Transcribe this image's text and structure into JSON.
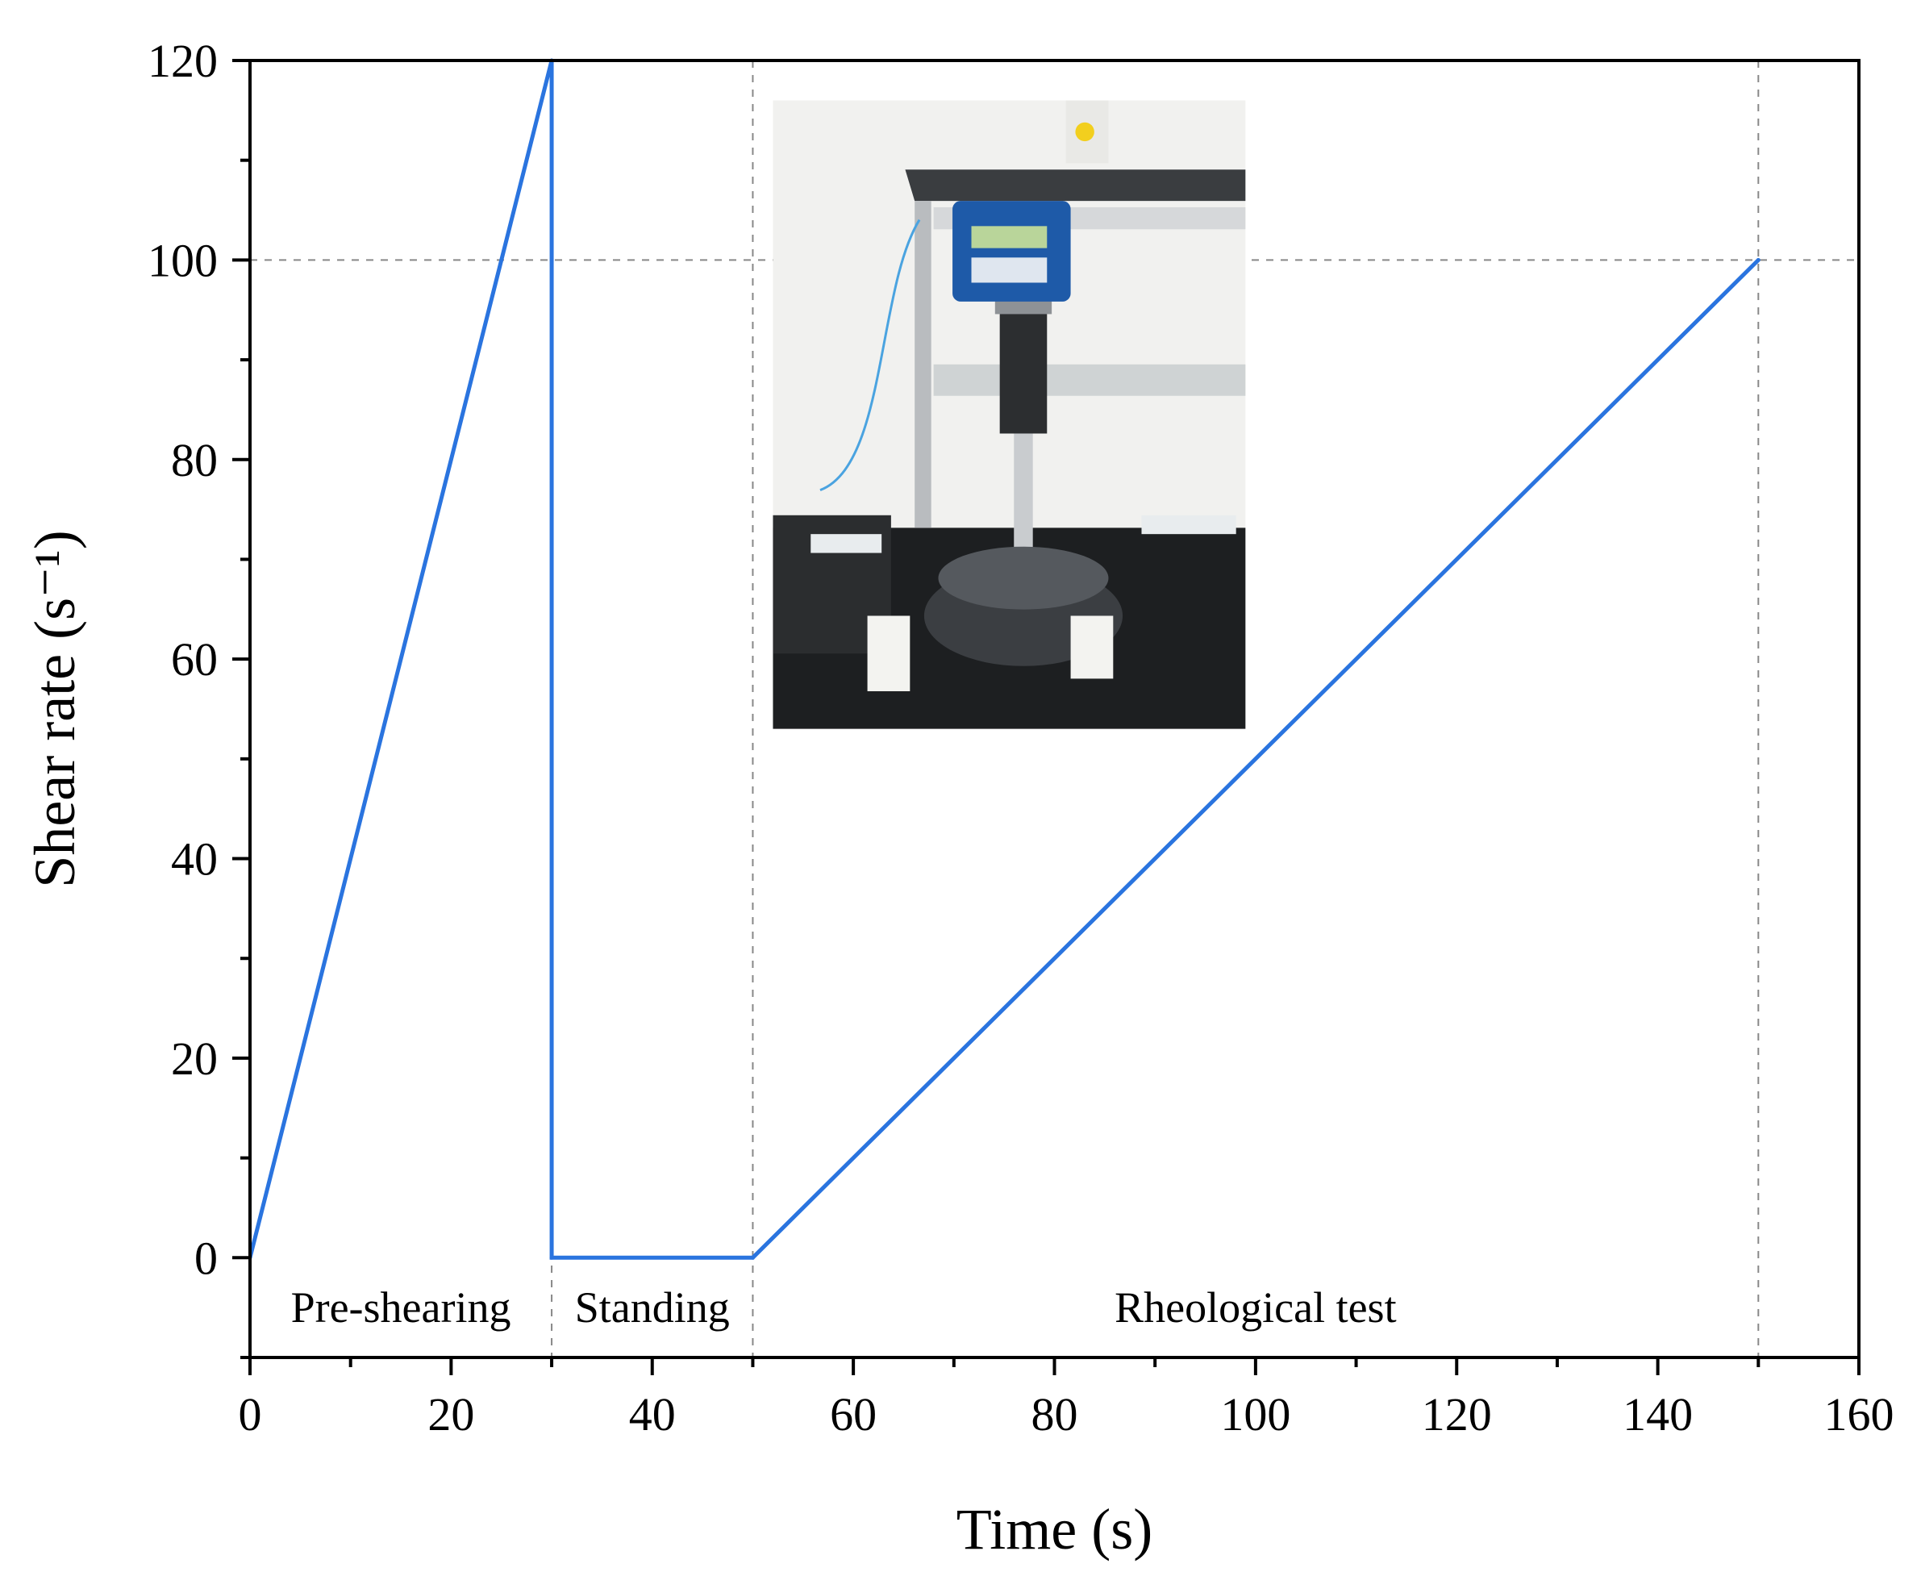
{
  "chart_data": {
    "type": "line",
    "title": "",
    "xlabel": "Time (s)",
    "ylabel": "Shear rate (s⁻¹)",
    "xlim": [
      0,
      160
    ],
    "ylim": [
      -10,
      120
    ],
    "xticks": [
      0,
      20,
      40,
      60,
      80,
      100,
      120,
      140,
      160
    ],
    "yticks": [
      0,
      20,
      40,
      60,
      80,
      100,
      120
    ],
    "grid": false,
    "series": [
      {
        "color": "#2a74df",
        "x": [
          0,
          30,
          30,
          50,
          150
        ],
        "y": [
          0,
          120,
          0,
          0,
          100
        ]
      }
    ],
    "reference_lines": [
      {
        "orientation": "vertical",
        "x": 30,
        "style": "dashed",
        "color": "#888888"
      },
      {
        "orientation": "vertical",
        "x": 50,
        "style": "dashed",
        "color": "#888888"
      },
      {
        "orientation": "vertical",
        "x": 150,
        "style": "dashed",
        "color": "#888888"
      },
      {
        "orientation": "horizontal",
        "y": 100,
        "style": "dashed",
        "color": "#888888"
      }
    ],
    "annotations": [
      {
        "text": "Pre-shearing",
        "x": 15,
        "y": -5
      },
      {
        "text": "Standing",
        "x": 40,
        "y": -5
      },
      {
        "text": "Rheological test",
        "x": 100,
        "y": -5
      }
    ],
    "inset_image": {
      "description_icon": "rheometer-photo-icon",
      "x_range": [
        52,
        99
      ],
      "y_range": [
        53,
        116
      ]
    }
  }
}
